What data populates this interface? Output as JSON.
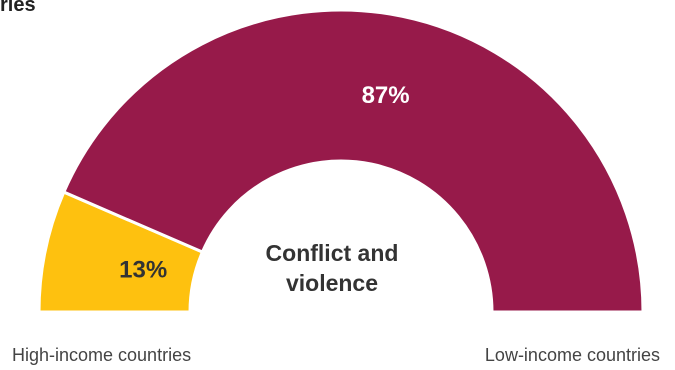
{
  "title_fragment": "ries",
  "center_label_line1": "Conflict and",
  "center_label_line2": "violence",
  "left_end_label": "High-income countries",
  "right_end_label": "Low-income countries",
  "chart_data": {
    "type": "pie",
    "variant": "semicircle-donut",
    "categories": [
      "High-income countries",
      "Low-income countries"
    ],
    "values": [
      13,
      87
    ],
    "data_labels": [
      "13%",
      "87%"
    ],
    "unit": "%",
    "colors": [
      "#FEC10F",
      "#971A4A"
    ],
    "title": "",
    "center_label": "Conflict and violence"
  }
}
